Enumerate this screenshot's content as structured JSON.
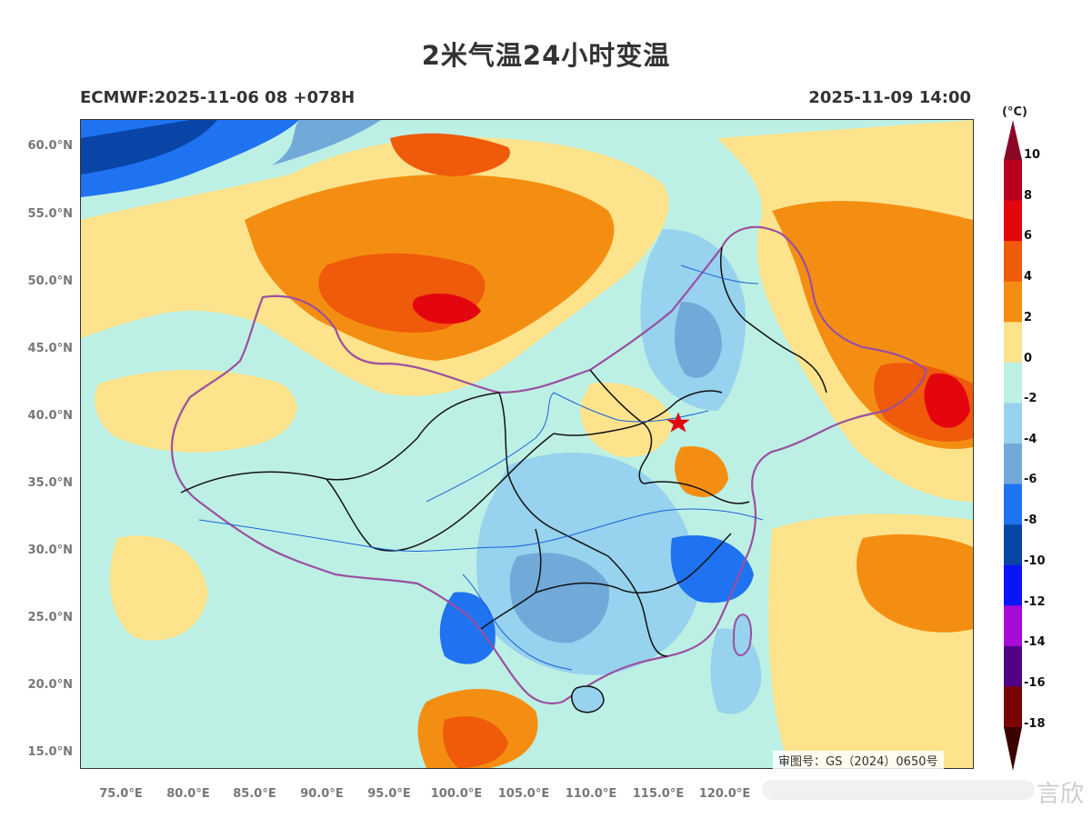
{
  "title": "2米气温24小时变温",
  "model_info": "ECMWF:2025-11-06 08 +078H",
  "valid_time": "2025-11-09 14:00",
  "unit": "(°C)",
  "approval": "审图号：GS（2024）0650号",
  "watermark_text": "言欣",
  "map": {
    "lat_labels": [
      "60.0°N",
      "55.0°N",
      "50.0°N",
      "45.0°N",
      "40.0°N",
      "35.0°N",
      "30.0°N",
      "25.0°N",
      "20.0°N",
      "15.0°N"
    ],
    "lon_labels": [
      "75.0°E",
      "80.0°E",
      "85.0°E",
      "90.0°E",
      "95.0°E",
      "100.0°E",
      "105.0°E",
      "110.0°E",
      "115.0°E",
      "120.0°E"
    ],
    "marker": "star-beijing"
  },
  "colorbar": {
    "labels": [
      "10",
      "8",
      "6",
      "4",
      "2",
      "0",
      "-2",
      "-4",
      "-6",
      "-8",
      "-10",
      "-12",
      "-14",
      "-16",
      "-18"
    ],
    "colors": [
      "#b8001f",
      "#e4060f",
      "#ef5a0b",
      "#f48e12",
      "#fde38c",
      "#bdf0e4",
      "#97d2ee",
      "#71a9d9",
      "#1f72f0",
      "#0945a6",
      "#0a14f4",
      "#a80ad8",
      "#520385",
      "#7a0404"
    ],
    "top_arrow_color": "#8a0726",
    "bottom_arrow_color": "#3b0202"
  }
}
